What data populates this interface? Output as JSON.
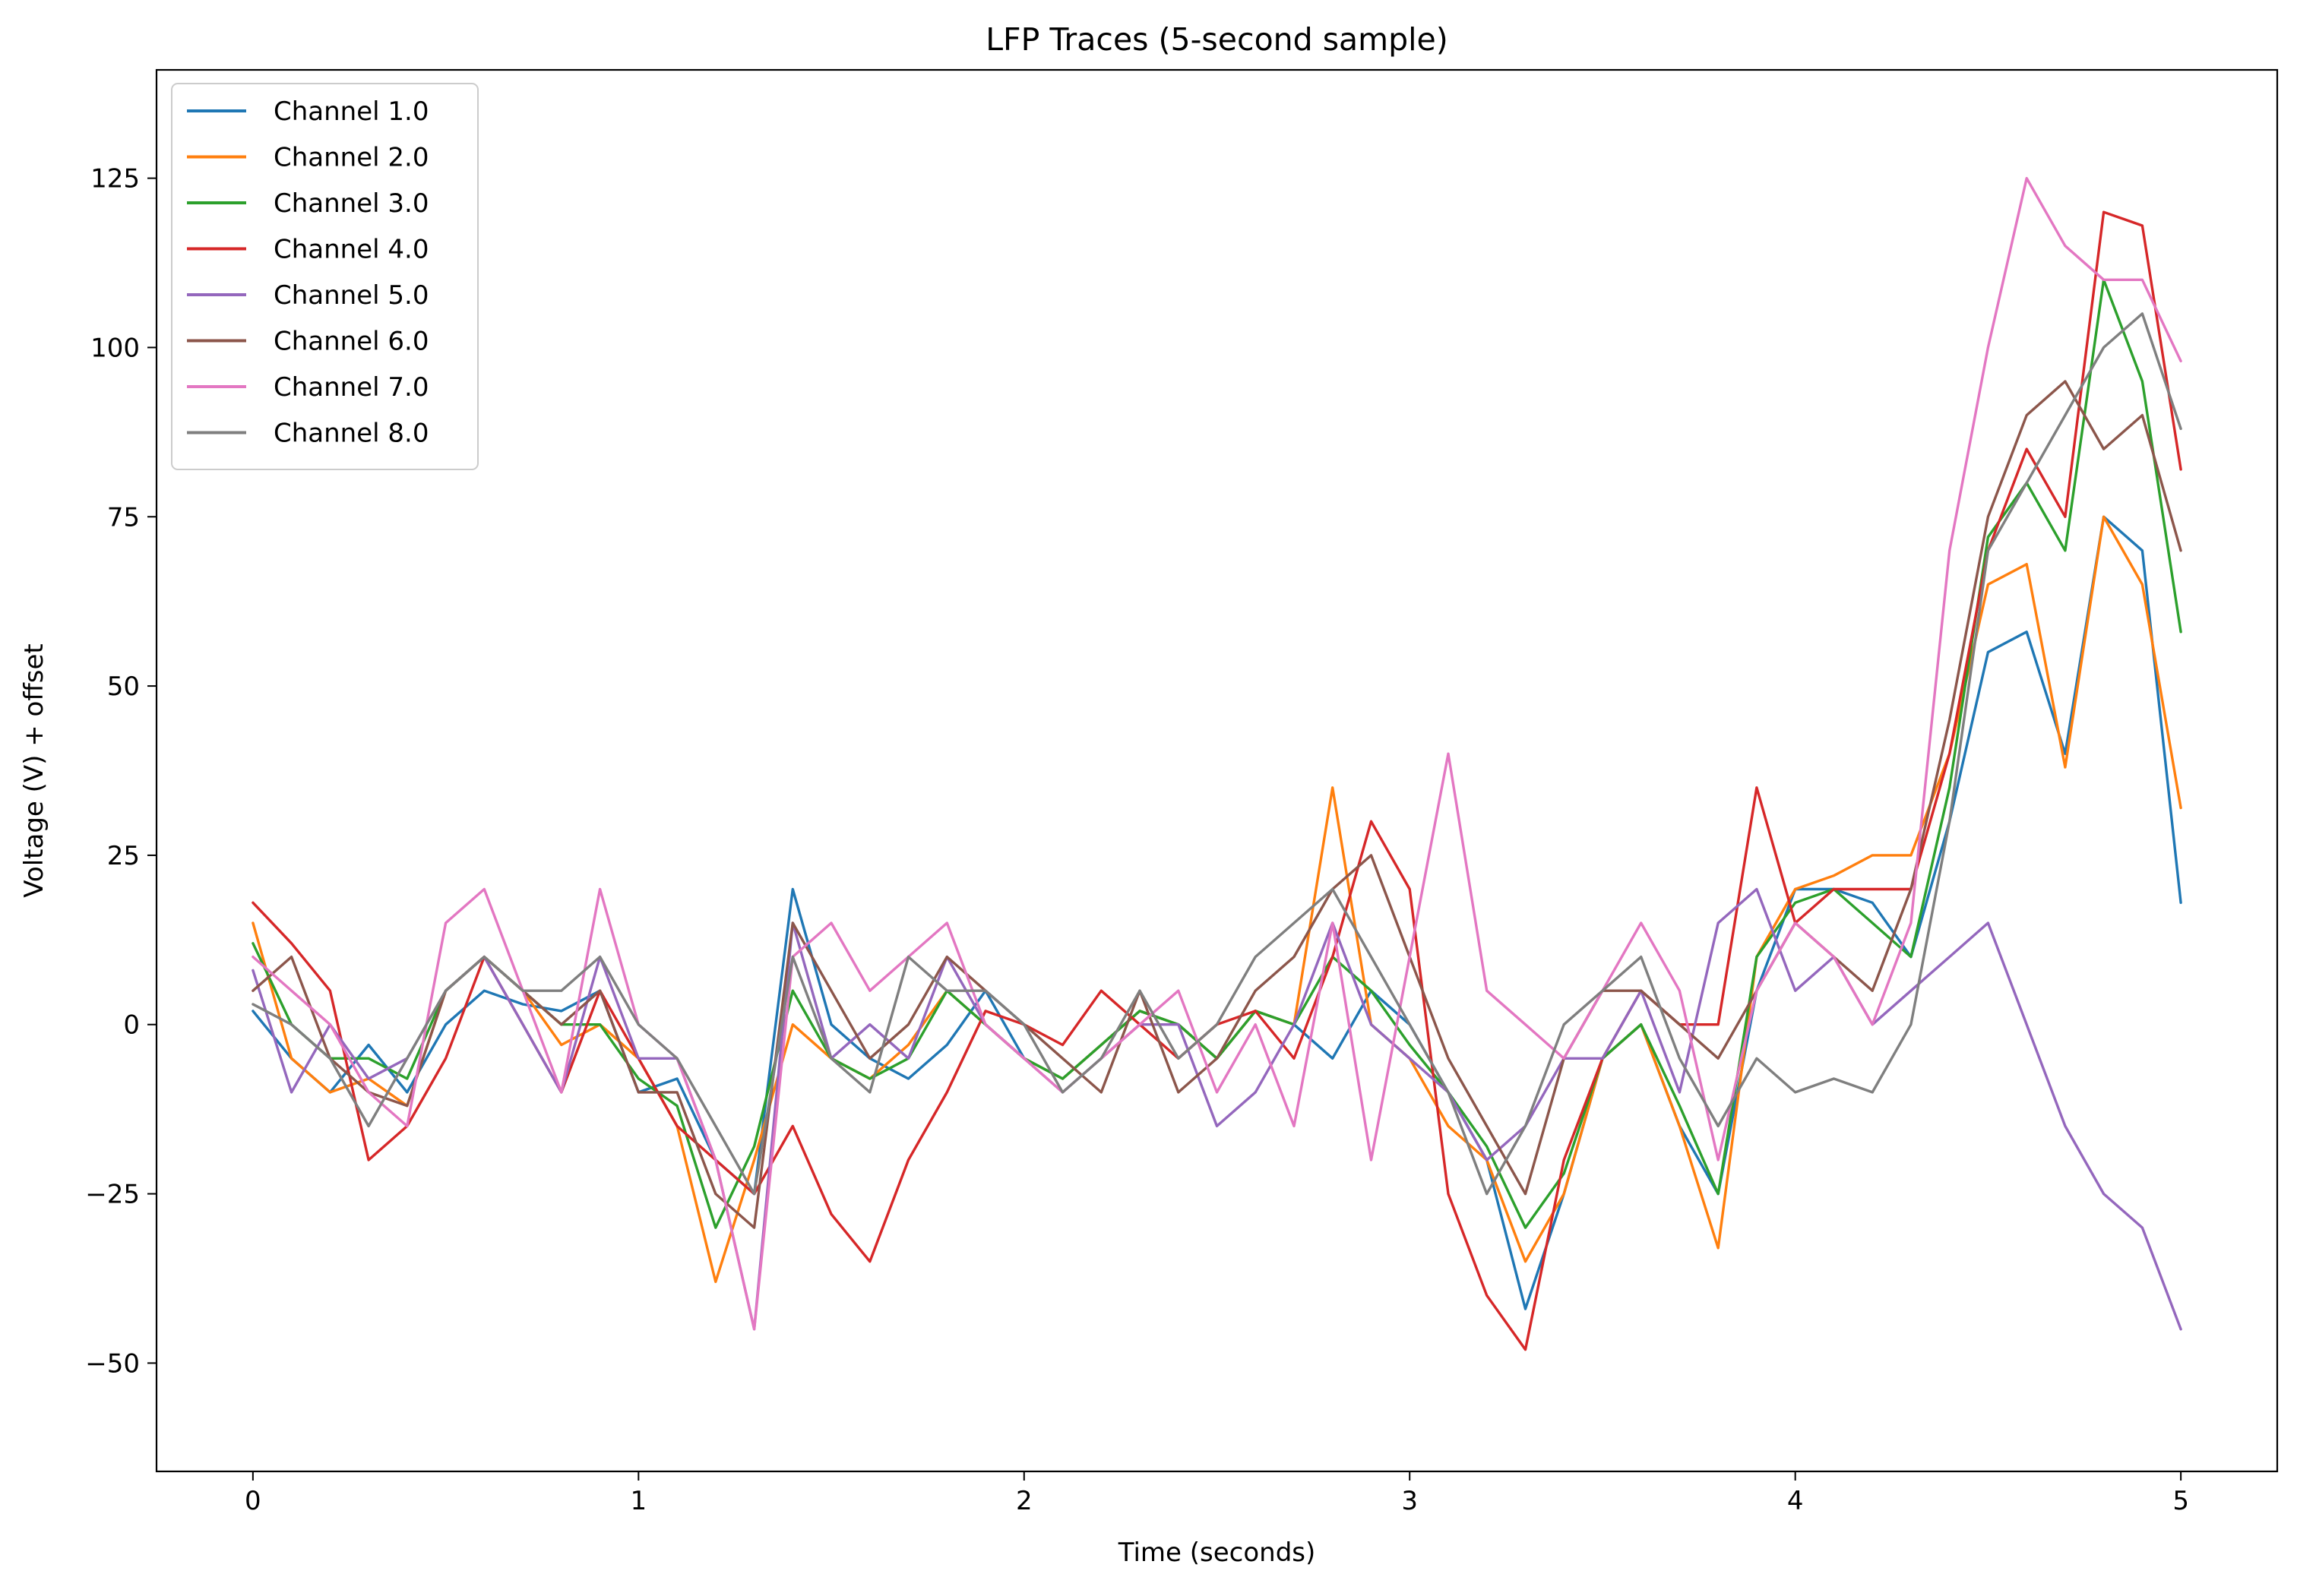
{
  "chart_data": {
    "type": "line",
    "title": "LFP Traces (5-second sample)",
    "xlabel": "Time (seconds)",
    "ylabel": "Voltage (V) + offset",
    "xlim": [
      -0.25,
      5.25
    ],
    "ylim": [
      -66,
      141
    ],
    "xticks": [
      0,
      1,
      2,
      3,
      4,
      5
    ],
    "xtick_labels": [
      "0",
      "1",
      "2",
      "3",
      "4",
      "5"
    ],
    "yticks": [
      -50,
      -25,
      0,
      25,
      50,
      75,
      100,
      125
    ],
    "ytick_labels": [
      "−50",
      "−25",
      "0",
      "25",
      "50",
      "75",
      "100",
      "125"
    ],
    "grid": false,
    "legend_position": "top-left",
    "x": [
      0,
      0.1,
      0.2,
      0.3,
      0.4,
      0.5,
      0.6,
      0.7,
      0.8,
      0.9,
      1.0,
      1.1,
      1.2,
      1.3,
      1.4,
      1.5,
      1.6,
      1.7,
      1.8,
      1.9,
      2.0,
      2.1,
      2.2,
      2.3,
      2.4,
      2.5,
      2.6,
      2.7,
      2.8,
      2.9,
      3.0,
      3.1,
      3.2,
      3.3,
      3.4,
      3.5,
      3.6,
      3.7,
      3.8,
      3.9,
      4.0,
      4.1,
      4.2,
      4.3,
      4.4,
      4.5,
      4.6,
      4.7,
      4.8,
      4.9,
      5.0
    ],
    "series": [
      {
        "name": "Channel 1.0",
        "color": "#1f77b4",
        "values": [
          2,
          -5,
          -10,
          -3,
          -10,
          0,
          5,
          3,
          2,
          5,
          -10,
          -8,
          -20,
          -25,
          20,
          0,
          -5,
          -8,
          -3,
          5,
          -5,
          -8,
          -3,
          2,
          0,
          -5,
          2,
          0,
          -5,
          5,
          0,
          -10,
          -20,
          -42,
          -25,
          -5,
          0,
          -15,
          -25,
          5,
          20,
          20,
          18,
          10,
          30,
          55,
          58,
          40,
          75,
          70,
          18
        ]
      },
      {
        "name": "Channel 2.0",
        "color": "#ff7f0e",
        "values": [
          15,
          -5,
          -10,
          -8,
          -12,
          5,
          10,
          5,
          -3,
          0,
          -5,
          -15,
          -38,
          -20,
          0,
          -5,
          -8,
          -3,
          5,
          0,
          -5,
          -8,
          -3,
          2,
          0,
          -5,
          2,
          0,
          35,
          0,
          -5,
          -15,
          -20,
          -35,
          -25,
          -5,
          0,
          -15,
          -33,
          10,
          20,
          22,
          25,
          25,
          40,
          65,
          68,
          38,
          75,
          65,
          32
        ]
      },
      {
        "name": "Channel 3.0",
        "color": "#2ca02c",
        "values": [
          12,
          0,
          -5,
          -5,
          -8,
          5,
          10,
          5,
          0,
          0,
          -8,
          -12,
          -30,
          -18,
          5,
          -5,
          -8,
          -5,
          5,
          0,
          -5,
          -8,
          -3,
          2,
          0,
          -5,
          2,
          0,
          10,
          5,
          -3,
          -10,
          -18,
          -30,
          -22,
          -5,
          0,
          -12,
          -25,
          10,
          18,
          20,
          15,
          10,
          35,
          72,
          80,
          70,
          110,
          95,
          58
        ]
      },
      {
        "name": "Channel 4.0",
        "color": "#d62728",
        "values": [
          18,
          12,
          5,
          -20,
          -15,
          -5,
          10,
          0,
          -10,
          5,
          -5,
          -15,
          -20,
          -25,
          -15,
          -28,
          -35,
          -20,
          -10,
          2,
          0,
          -3,
          5,
          0,
          -5,
          0,
          2,
          -5,
          10,
          30,
          20,
          -25,
          -40,
          -48,
          -20,
          -5,
          5,
          0,
          0,
          35,
          15,
          20,
          20,
          20,
          40,
          70,
          85,
          75,
          120,
          118,
          82
        ]
      },
      {
        "name": "Channel 5.0",
        "color": "#9467bd",
        "values": [
          8,
          -10,
          0,
          -8,
          -5,
          5,
          10,
          0,
          -10,
          10,
          -5,
          -5,
          -20,
          -45,
          15,
          -5,
          0,
          -5,
          10,
          0,
          -5,
          -10,
          -5,
          0,
          0,
          -15,
          -10,
          0,
          15,
          0,
          -5,
          -10,
          -20,
          -15,
          -5,
          -5,
          5,
          -10,
          15,
          20,
          5,
          10,
          0,
          5,
          10,
          15,
          0,
          -15,
          -25,
          -30,
          -45
        ]
      },
      {
        "name": "Channel 6.0",
        "color": "#8c564b",
        "values": [
          5,
          10,
          -5,
          -10,
          -12,
          5,
          10,
          5,
          0,
          5,
          -10,
          -10,
          -25,
          -30,
          15,
          5,
          -5,
          0,
          10,
          5,
          0,
          -5,
          -10,
          5,
          -10,
          -5,
          5,
          10,
          20,
          25,
          10,
          -5,
          -15,
          -25,
          -5,
          5,
          5,
          0,
          -5,
          5,
          15,
          10,
          5,
          20,
          45,
          75,
          90,
          95,
          85,
          90,
          70
        ]
      },
      {
        "name": "Channel 7.0",
        "color": "#e377c2",
        "values": [
          10,
          5,
          0,
          -10,
          -15,
          15,
          20,
          5,
          -10,
          20,
          0,
          -5,
          -20,
          -45,
          10,
          15,
          5,
          10,
          15,
          0,
          -5,
          -10,
          -5,
          0,
          5,
          -10,
          0,
          -15,
          15,
          -20,
          10,
          40,
          5,
          0,
          -5,
          5,
          15,
          5,
          -20,
          5,
          15,
          10,
          0,
          15,
          70,
          100,
          125,
          115,
          110,
          110,
          98
        ]
      },
      {
        "name": "Channel 8.0",
        "color": "#7f7f7f",
        "values": [
          3,
          0,
          -5,
          -15,
          -5,
          5,
          10,
          5,
          5,
          10,
          0,
          -5,
          -15,
          -25,
          10,
          -5,
          -10,
          10,
          5,
          5,
          0,
          -10,
          -5,
          5,
          -5,
          0,
          10,
          15,
          20,
          10,
          0,
          -10,
          -25,
          -15,
          0,
          5,
          10,
          -5,
          -15,
          -5,
          -10,
          -8,
          -10,
          0,
          30,
          70,
          80,
          90,
          100,
          105,
          88
        ]
      }
    ]
  }
}
